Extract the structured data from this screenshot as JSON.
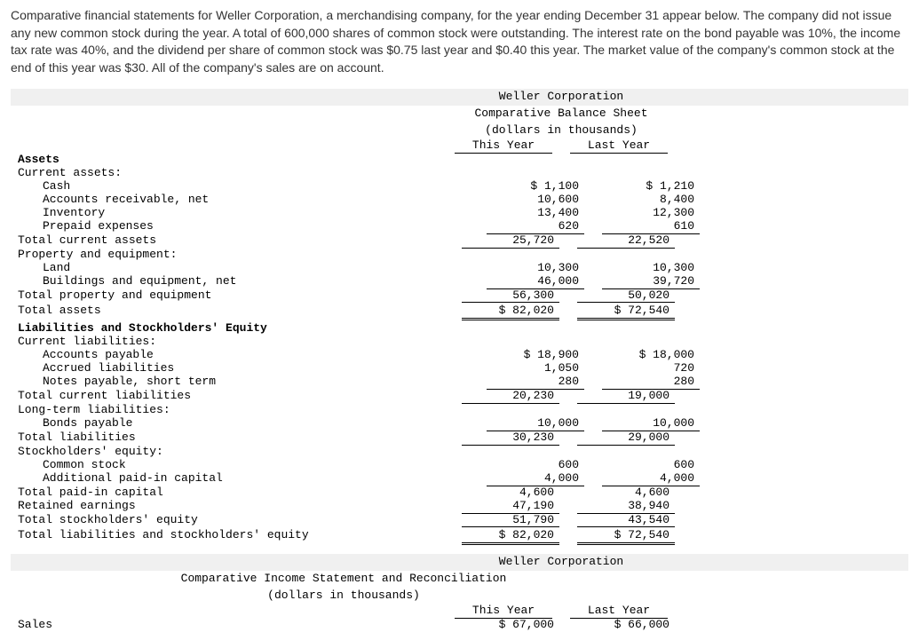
{
  "intro": "Comparative financial statements for Weller Corporation, a merchandising company, for the year ending December 31 appear below. The company did not issue any new common stock during the year. A total of 600,000 shares of common stock were outstanding. The interest rate on the bond payable was 10%, the income tax rate was 40%, and the dividend per share of common stock was $0.75 last year and $0.40 this year. The market value of the company's common stock at the end of this year was $30. All of the company's sales are on account.",
  "bs": {
    "title1": "Weller Corporation",
    "title2": "Comparative Balance Sheet",
    "title3": "(dollars in thousands)",
    "col_this": "This Year",
    "col_last": "Last Year",
    "sec_assets": "Assets",
    "sec_ca": "Current assets:",
    "cash_l": "Cash",
    "cash_t": "$ 1,100",
    "cash_y": "$ 1,210",
    "ar_l": "Accounts receivable, net",
    "ar_t": "10,600",
    "ar_y": "8,400",
    "inv_l": "Inventory",
    "inv_t": "13,400",
    "inv_y": "12,300",
    "pre_l": "Prepaid expenses",
    "pre_t": "620",
    "pre_y": "610",
    "tca_l": "Total current assets",
    "tca_t": "25,720",
    "tca_y": "22,520",
    "sec_pe": "Property and equipment:",
    "land_l": "Land",
    "land_t": "10,300",
    "land_y": "10,300",
    "be_l": "Buildings and equipment, net",
    "be_t": "46,000",
    "be_y": "39,720",
    "tpe_l": "Total property and equipment",
    "tpe_t": "56,300",
    "tpe_y": "50,020",
    "ta_l": "Total assets",
    "ta_t": "$ 82,020",
    "ta_y": "$ 72,540",
    "sec_lse": "Liabilities and Stockholders' Equity",
    "sec_cl": "Current liabilities:",
    "ap_l": "Accounts payable",
    "ap_t": "$ 18,900",
    "ap_y": "$ 18,000",
    "al_l": "Accrued liabilities",
    "al_t": "1,050",
    "al_y": "720",
    "np_l": "Notes payable, short term",
    "np_t": "280",
    "np_y": "280",
    "tcl_l": "Total current liabilities",
    "tcl_t": "20,230",
    "tcl_y": "19,000",
    "sec_lt": "Long-term liabilities:",
    "bp_l": "Bonds payable",
    "bp_t": "10,000",
    "bp_y": "10,000",
    "tl_l": "Total liabilities",
    "tl_t": "30,230",
    "tl_y": "29,000",
    "sec_se": "Stockholders' equity:",
    "cs_l": "Common stock",
    "cs_t": "600",
    "cs_y": "600",
    "apc_l": "Additional paid-in capital",
    "apc_t": "4,000",
    "apc_y": "4,000",
    "tpc_l": "Total paid-in capital",
    "tpc_t": "4,600",
    "tpc_y": "4,600",
    "re_l": "Retained earnings",
    "re_t": "47,190",
    "re_y": "38,940",
    "tse_l": "Total stockholders' equity",
    "tse_t": "51,790",
    "tse_y": "43,540",
    "tlse_l": "Total liabilities and stockholders' equity",
    "tlse_t": "$ 82,020",
    "tlse_y": "$ 72,540"
  },
  "is": {
    "title1": "Weller Corporation",
    "title2": "Comparative Income Statement and Reconciliation",
    "title3": "(dollars in thousands)",
    "col_this": "This Year",
    "col_last": "Last Year",
    "sales_l": "Sales",
    "sales_t": "$ 67,000",
    "sales_y": "$ 66,000"
  }
}
